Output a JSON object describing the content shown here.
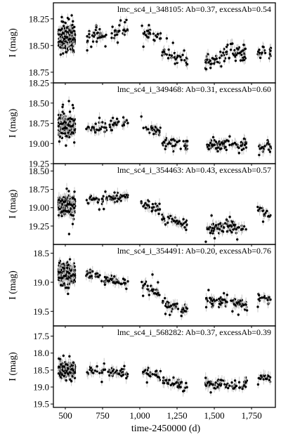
{
  "figure": {
    "xlabel": "time-2450000 (d)",
    "x_tick_labels": [
      "500",
      "750",
      "1,000",
      "1,250",
      "1,500",
      "1,750"
    ]
  },
  "chart_data": [
    {
      "type": "scatter",
      "title": "lmc_sc4_i_348105: Ab=0.37, excessAb=0.54",
      "ylabel": "I (mag)",
      "ylim": [
        18.85,
        18.1
      ],
      "y_inverted": true,
      "xlim": [
        420,
        1910
      ],
      "yticks": [
        18.25,
        18.5,
        18.75
      ],
      "ytick_labels": [
        "18.25",
        "18.50",
        "18.75"
      ],
      "point_color": "#000000",
      "error_bar_color": "#c8c8c8",
      "segments": [
        {
          "x_range": [
            455,
            565
          ],
          "y_path": [
            [
              455,
              18.43
            ],
            [
              565,
              18.43
            ]
          ],
          "scatter": 0.09,
          "count": 300
        },
        {
          "x_range": [
            640,
            920
          ],
          "y_path": [
            [
              640,
              18.41
            ],
            [
              780,
              18.39
            ],
            [
              920,
              18.36
            ]
          ],
          "scatter": 0.06,
          "count": 60
        },
        {
          "x_range": [
            1010,
            1140
          ],
          "y_path": [
            [
              1010,
              18.38
            ],
            [
              1140,
              18.42
            ]
          ],
          "scatter": 0.05,
          "count": 30
        },
        {
          "x_range": [
            1150,
            1320
          ],
          "y_path": [
            [
              1150,
              18.55
            ],
            [
              1320,
              18.66
            ]
          ],
          "scatter": 0.05,
          "count": 40
        },
        {
          "x_range": [
            1440,
            1720
          ],
          "y_path": [
            [
              1440,
              18.66
            ],
            [
              1600,
              18.55
            ],
            [
              1720,
              18.58
            ]
          ],
          "scatter": 0.08,
          "count": 80
        },
        {
          "x_range": [
            1790,
            1880
          ],
          "y_path": [
            [
              1790,
              18.57
            ],
            [
              1880,
              18.56
            ]
          ],
          "scatter": 0.05,
          "count": 20
        }
      ]
    },
    {
      "type": "scatter",
      "title": "lmc_sc4_i_349468: Ab=0.31, excessAb=0.60",
      "ylabel": "I (mag)",
      "ylim": [
        19.25,
        18.25
      ],
      "y_inverted": true,
      "xlim": [
        420,
        1910
      ],
      "yticks": [
        18.25,
        18.5,
        18.75,
        19.0,
        19.25
      ],
      "ytick_labels": [
        "18.25",
        "18.50",
        "18.75",
        "19.00",
        "19.25"
      ],
      "point_color": "#000000",
      "error_bar_color": "#c8c8c8",
      "segments": [
        {
          "x_range": [
            455,
            565
          ],
          "y_path": [
            [
              455,
              18.79
            ],
            [
              565,
              18.79
            ]
          ],
          "scatter": 0.1,
          "count": 300
        },
        {
          "x_range": [
            640,
            920
          ],
          "y_path": [
            [
              640,
              18.81
            ],
            [
              780,
              18.79
            ],
            [
              920,
              18.74
            ]
          ],
          "scatter": 0.06,
          "count": 60
        },
        {
          "x_range": [
            1010,
            1140
          ],
          "y_path": [
            [
              1010,
              18.8
            ],
            [
              1140,
              18.86
            ]
          ],
          "scatter": 0.06,
          "count": 30
        },
        {
          "x_range": [
            1150,
            1320
          ],
          "y_path": [
            [
              1150,
              18.97
            ],
            [
              1320,
              18.99
            ]
          ],
          "scatter": 0.06,
          "count": 40
        },
        {
          "x_range": [
            1440,
            1720
          ],
          "y_path": [
            [
              1440,
              19.03
            ],
            [
              1600,
              19.0
            ],
            [
              1720,
              19.03
            ]
          ],
          "scatter": 0.06,
          "count": 80
        },
        {
          "x_range": [
            1790,
            1880
          ],
          "y_path": [
            [
              1790,
              19.03
            ],
            [
              1880,
              19.06
            ]
          ],
          "scatter": 0.06,
          "count": 20
        }
      ]
    },
    {
      "type": "scatter",
      "title": "lmc_sc4_i_354463: Ab=0.43, excessAb=0.57",
      "ylabel": "I (mag)",
      "ylim": [
        19.5,
        18.4
      ],
      "y_inverted": true,
      "xlim": [
        420,
        1910
      ],
      "yticks": [
        18.5,
        18.75,
        19.0,
        19.25
      ],
      "ytick_labels": [
        "18.50",
        "18.75",
        "19.00",
        "19.25"
      ],
      "point_color": "#000000",
      "error_bar_color": "#c8c8c8",
      "segments": [
        {
          "x_range": [
            455,
            565
          ],
          "y_path": [
            [
              455,
              18.97
            ],
            [
              565,
              18.97
            ]
          ],
          "scatter": 0.1,
          "count": 300
        },
        {
          "x_range": [
            640,
            920
          ],
          "y_path": [
            [
              640,
              18.91
            ],
            [
              780,
              18.89
            ],
            [
              920,
              18.84
            ]
          ],
          "scatter": 0.06,
          "count": 60
        },
        {
          "x_range": [
            1010,
            1140
          ],
          "y_path": [
            [
              1010,
              18.93
            ],
            [
              1140,
              19.03
            ]
          ],
          "scatter": 0.06,
          "count": 30
        },
        {
          "x_range": [
            1150,
            1320
          ],
          "y_path": [
            [
              1150,
              19.14
            ],
            [
              1320,
              19.23
            ]
          ],
          "scatter": 0.06,
          "count": 40
        },
        {
          "x_range": [
            1440,
            1720
          ],
          "y_path": [
            [
              1440,
              19.3
            ],
            [
              1600,
              19.24
            ],
            [
              1720,
              19.28
            ]
          ],
          "scatter": 0.07,
          "count": 80
        },
        {
          "x_range": [
            1790,
            1880
          ],
          "y_path": [
            [
              1790,
              19.02
            ],
            [
              1880,
              19.1
            ]
          ],
          "scatter": 0.06,
          "count": 20
        }
      ]
    },
    {
      "type": "scatter",
      "title": "lmc_sc4_i_354491: Ab=0.20, excessAb=0.76",
      "ylabel": "I (mag)",
      "ylim": [
        19.75,
        18.35
      ],
      "y_inverted": true,
      "xlim": [
        420,
        1910
      ],
      "yticks": [
        18.5,
        19.0,
        19.5
      ],
      "ytick_labels": [
        "18.5",
        "19.0",
        "19.5"
      ],
      "point_color": "#000000",
      "error_bar_color": "#c8c8c8",
      "segments": [
        {
          "x_range": [
            455,
            565
          ],
          "y_path": [
            [
              455,
              18.85
            ],
            [
              565,
              18.85
            ]
          ],
          "scatter": 0.11,
          "count": 300
        },
        {
          "x_range": [
            640,
            920
          ],
          "y_path": [
            [
              640,
              18.85
            ],
            [
              780,
              18.95
            ],
            [
              920,
              19.02
            ]
          ],
          "scatter": 0.08,
          "count": 60
        },
        {
          "x_range": [
            1010,
            1140
          ],
          "y_path": [
            [
              1010,
              19.05
            ],
            [
              1140,
              19.18
            ]
          ],
          "scatter": 0.08,
          "count": 30
        },
        {
          "x_range": [
            1150,
            1320
          ],
          "y_path": [
            [
              1150,
              19.35
            ],
            [
              1320,
              19.48
            ]
          ],
          "scatter": 0.09,
          "count": 40
        },
        {
          "x_range": [
            1440,
            1720
          ],
          "y_path": [
            [
              1440,
              19.32
            ],
            [
              1600,
              19.33
            ],
            [
              1720,
              19.4
            ]
          ],
          "scatter": 0.08,
          "count": 80
        },
        {
          "x_range": [
            1790,
            1880
          ],
          "y_path": [
            [
              1790,
              19.25
            ],
            [
              1880,
              19.3
            ]
          ],
          "scatter": 0.08,
          "count": 20
        }
      ]
    },
    {
      "type": "scatter",
      "title": "lmc_sc4_i_568282: Ab=0.37, excessAb=0.39",
      "ylabel": "I (mag)",
      "ylim": [
        19.6,
        17.2
      ],
      "y_inverted": true,
      "xlim": [
        420,
        1910
      ],
      "yticks": [
        17.5,
        18.0,
        18.5,
        19.0,
        19.5
      ],
      "ytick_labels": [
        "17.5",
        "18.0",
        "18.5",
        "19.0",
        "19.5"
      ],
      "point_color": "#000000",
      "error_bar_color": "#c8c8c8",
      "segments": [
        {
          "x_range": [
            455,
            565
          ],
          "y_path": [
            [
              455,
              18.5
            ],
            [
              565,
              18.5
            ]
          ],
          "scatter": 0.16,
          "count": 300
        },
        {
          "x_range": [
            640,
            920
          ],
          "y_path": [
            [
              640,
              18.5
            ],
            [
              780,
              18.55
            ],
            [
              920,
              18.6
            ]
          ],
          "scatter": 0.12,
          "count": 60
        },
        {
          "x_range": [
            1010,
            1140
          ],
          "y_path": [
            [
              1010,
              18.55
            ],
            [
              1140,
              18.65
            ]
          ],
          "scatter": 0.12,
          "count": 30
        },
        {
          "x_range": [
            1150,
            1320
          ],
          "y_path": [
            [
              1150,
              18.8
            ],
            [
              1320,
              19.0
            ]
          ],
          "scatter": 0.12,
          "count": 40
        },
        {
          "x_range": [
            1440,
            1720
          ],
          "y_path": [
            [
              1440,
              18.9
            ],
            [
              1600,
              18.95
            ],
            [
              1720,
              18.9
            ]
          ],
          "scatter": 0.12,
          "count": 80
        },
        {
          "x_range": [
            1790,
            1880
          ],
          "y_path": [
            [
              1790,
              18.7
            ],
            [
              1880,
              18.75
            ]
          ],
          "scatter": 0.12,
          "count": 20
        }
      ]
    }
  ]
}
